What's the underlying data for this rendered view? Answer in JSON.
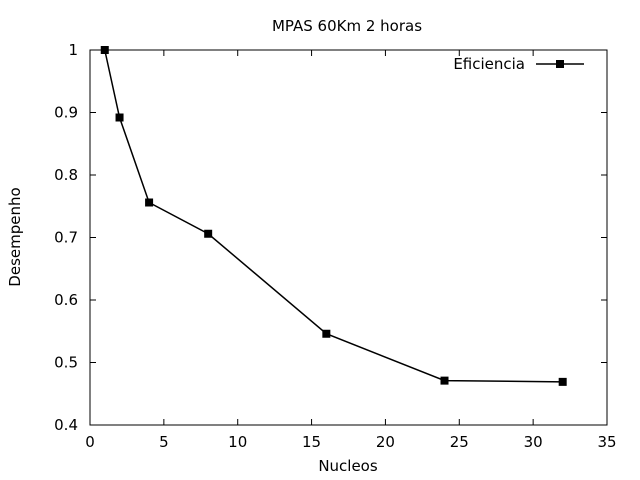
{
  "chart_data": {
    "type": "line",
    "title": "MPAS 60Km 2 horas",
    "xlabel": "Nucleos",
    "ylabel": "Desempenho",
    "xlim": [
      0,
      35
    ],
    "ylim": [
      0.4,
      1.0
    ],
    "x_ticks": [
      0,
      5,
      10,
      15,
      20,
      25,
      30,
      35
    ],
    "y_ticks": [
      0.4,
      0.5,
      0.6,
      0.7,
      0.8,
      0.9,
      1.0
    ],
    "x_tick_labels": [
      "0",
      "5",
      "10",
      "15",
      "20",
      "25",
      "30",
      "35"
    ],
    "y_tick_labels": [
      "0.4",
      "0.5",
      "0.6",
      "0.7",
      "0.8",
      "0.9",
      "1"
    ],
    "grid": false,
    "legend_position": "top-right",
    "series": [
      {
        "name": "Eficiencia",
        "color": "#000000",
        "marker": "square",
        "x": [
          1,
          2,
          4,
          8,
          16,
          24,
          32
        ],
        "values": [
          1.0,
          0.892,
          0.756,
          0.706,
          0.546,
          0.471,
          0.469
        ]
      }
    ]
  }
}
